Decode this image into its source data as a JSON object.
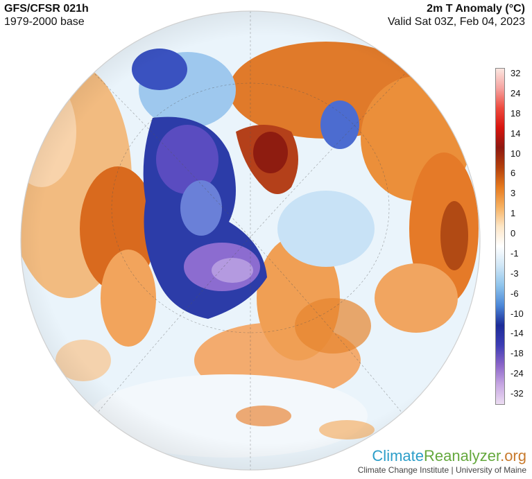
{
  "header": {
    "model": "GFS/CFSR 021h",
    "base": "1979-2000 base",
    "variable": "2m T Anomaly (°C)",
    "valid": "Valid Sat 03Z, Feb 04, 2023"
  },
  "colorbar": {
    "labels": [
      "32",
      "24",
      "18",
      "14",
      "10",
      "6",
      "3",
      "1",
      "0",
      "-1",
      "-3",
      "-6",
      "-10",
      "-14",
      "-18",
      "-24",
      "-32"
    ],
    "colors": [
      "#fbe6e0",
      "#f6a3a0",
      "#ee4a3e",
      "#d8140e",
      "#8e1810",
      "#b3400c",
      "#e67a1e",
      "#f6b060",
      "#fde6c6",
      "#ffffff",
      "#cfe6f6",
      "#8ec4ec",
      "#4c88d8",
      "#1c2c98",
      "#3c3cb4",
      "#8a64c8",
      "#c6a6e2",
      "#ecdcf2"
    ]
  },
  "brand": {
    "part1": "Climate",
    "part2": "Reanalyzer",
    "part3": ".org",
    "credit": "Climate Change Institute | University of Maine"
  }
}
